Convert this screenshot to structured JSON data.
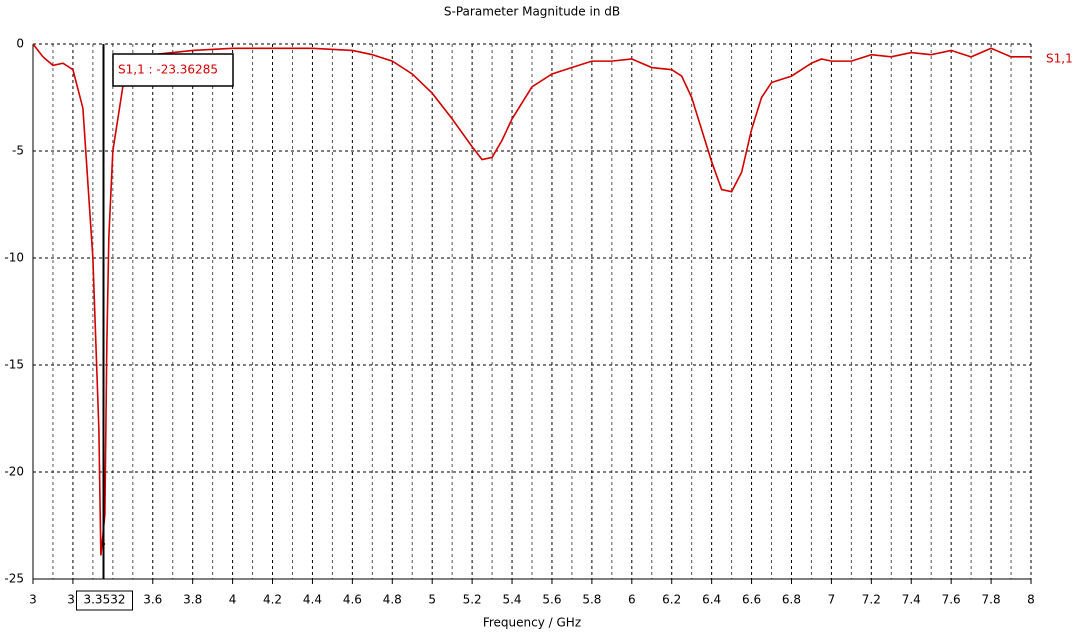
{
  "chart_data": {
    "type": "line",
    "title": "S-Parameter Magnitude in dB",
    "x_label": "Frequency / GHz",
    "x": [
      3.0,
      3.05,
      3.1,
      3.15,
      3.2,
      3.25,
      3.3,
      3.33,
      3.34,
      3.36,
      3.37,
      3.38,
      3.4,
      3.45,
      3.5,
      3.55,
      3.6,
      3.7,
      3.8,
      4.0,
      4.2,
      4.4,
      4.6,
      4.7,
      4.8,
      4.9,
      5.0,
      5.1,
      5.2,
      5.25,
      5.3,
      5.35,
      5.4,
      5.5,
      5.6,
      5.7,
      5.8,
      5.9,
      6.0,
      6.1,
      6.2,
      6.25,
      6.3,
      6.35,
      6.4,
      6.45,
      6.5,
      6.55,
      6.6,
      6.65,
      6.7,
      6.8,
      6.9,
      6.95,
      7.0,
      7.1,
      7.2,
      7.3,
      7.4,
      7.5,
      7.6,
      7.7,
      7.8,
      7.9,
      8.0
    ],
    "series": [
      {
        "name": "S1,1",
        "color": "#d40000",
        "values": [
          0,
          -0.6,
          -1.0,
          -0.9,
          -1.2,
          -3,
          -10,
          -18,
          -23.9,
          -22,
          -14,
          -9,
          -5,
          -2,
          -1,
          -0.7,
          -0.5,
          -0.4,
          -0.3,
          -0.2,
          -0.2,
          -0.2,
          -0.3,
          -0.5,
          -0.8,
          -1.4,
          -2.3,
          -3.5,
          -4.8,
          -5.4,
          -5.3,
          -4.5,
          -3.5,
          -2.0,
          -1.4,
          -1.1,
          -0.8,
          -0.8,
          -0.7,
          -1.1,
          -1.2,
          -1.5,
          -2.5,
          -4,
          -5.5,
          -6.8,
          -6.9,
          -6.0,
          -4,
          -2.5,
          -1.8,
          -1.5,
          -0.9,
          -0.7,
          -0.8,
          -0.8,
          -0.5,
          -0.6,
          -0.4,
          -0.5,
          -0.3,
          -0.6,
          -0.2,
          -0.6,
          -0.6
        ]
      }
    ],
    "xlim": [
      3,
      8
    ],
    "ylim": [
      -25,
      0
    ],
    "xticks": [
      3,
      {
        "value": 3.2,
        "label": "3."
      },
      3.6,
      3.8,
      4,
      4.2,
      4.4,
      4.6,
      4.8,
      5,
      5.2,
      5.4,
      5.6,
      5.8,
      6,
      6.2,
      6.4,
      6.6,
      6.8,
      7,
      7.2,
      7.4,
      7.6,
      7.8,
      8
    ],
    "xminorticks": [
      3.1,
      3.3,
      3.4,
      3.5,
      3.7,
      3.9,
      4.1,
      4.3,
      4.5,
      4.7,
      4.9,
      5.1,
      5.3,
      5.5,
      5.7,
      5.9,
      6.1,
      6.3,
      6.5,
      6.7,
      6.9,
      7.1,
      7.3,
      7.5,
      7.7,
      7.9
    ],
    "yticks": [
      0,
      -5,
      -10,
      -15,
      -20,
      -25
    ],
    "grid": true,
    "marker": {
      "x": 3.3532,
      "value": -23.36285,
      "annotation": "S1,1 : -23.36285"
    }
  }
}
